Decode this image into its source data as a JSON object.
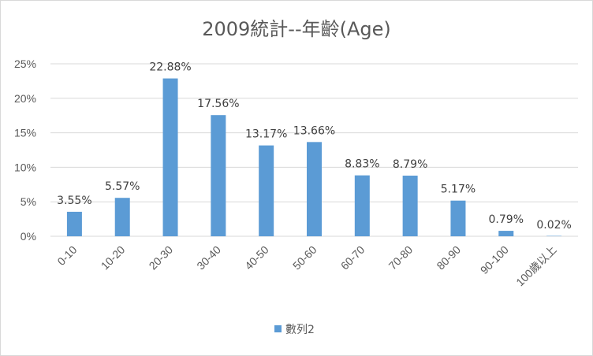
{
  "chart_data": {
    "type": "bar",
    "title": "2009統計--年齡(Age)",
    "xlabel": "",
    "ylabel": "",
    "categories": [
      "0-10",
      "10-20",
      "20-30",
      "30-40",
      "40-50",
      "50-60",
      "60-70",
      "70-80",
      "80-90",
      "90-100",
      "100歲以上"
    ],
    "series": [
      {
        "name": "數列2",
        "values": [
          3.55,
          5.57,
          22.88,
          17.56,
          13.17,
          13.66,
          8.83,
          8.79,
          5.17,
          0.79,
          0.02
        ],
        "data_labels": [
          "3.55%",
          "5.57%",
          "22.88%",
          "17.56%",
          "13.17%",
          "13.66%",
          "8.83%",
          "8.79%",
          "5.17%",
          "0.79%",
          "0.02%"
        ],
        "color": "#5b9bd5"
      }
    ],
    "ylim": [
      0,
      25
    ],
    "y_ticks": [
      "0%",
      "5%",
      "10%",
      "15%",
      "20%",
      "25%"
    ],
    "grid": true,
    "legend": "bottom"
  }
}
